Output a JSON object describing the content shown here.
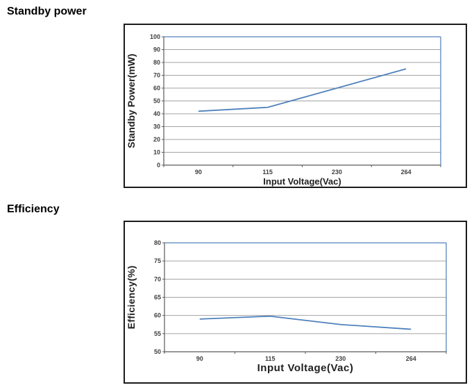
{
  "chart_data": [
    {
      "type": "line",
      "title": "Standby power",
      "xlabel": "Input Voltage(Vac)",
      "ylabel": "Standby Power(mW)",
      "categories": [
        "90",
        "115",
        "230",
        "264"
      ],
      "series": [
        {
          "name": "Standby Power(mW)",
          "values": [
            42,
            45,
            60,
            75
          ]
        }
      ],
      "ylim": [
        0,
        100
      ],
      "ystep": 10,
      "grid": true,
      "legend_position": "none",
      "colors": {
        "line": "#4f81bd",
        "plot_border": "#6f95c5",
        "gridline": "#a3a3a3",
        "axis": "#595959",
        "tick_label": "#3f3f3f",
        "axis_title": "#1f1f1f"
      }
    },
    {
      "type": "line",
      "title": "Efficiency",
      "xlabel": "Input Voltage(Vac)",
      "ylabel": "Efficiency(%)",
      "categories": [
        "90",
        "115",
        "230",
        "264"
      ],
      "series": [
        {
          "name": "Efficiency(%)",
          "values": [
            59,
            59.8,
            57.5,
            56.2
          ]
        }
      ],
      "ylim": [
        50,
        80
      ],
      "ystep": 5,
      "grid": true,
      "legend_position": "none",
      "colors": {
        "line": "#4f81bd",
        "plot_border": "#6f95c5",
        "gridline": "#a3a3a3",
        "axis": "#595959",
        "tick_label": "#3f3f3f",
        "axis_title": "#1f1f1f"
      }
    }
  ]
}
